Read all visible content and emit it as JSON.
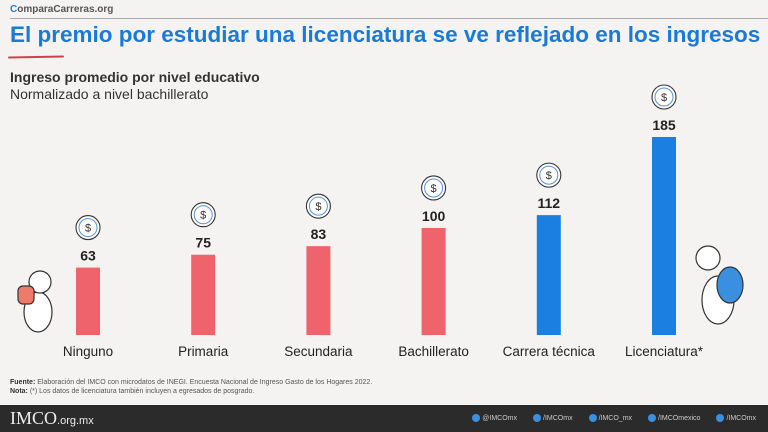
{
  "header": {
    "site_prefix": "C",
    "site_rest": "omparaCarreras.org",
    "title": "El premio por estudiar una licenciatura se ve reflejado en los ingresos"
  },
  "chart_data": {
    "type": "bar",
    "title": "Ingreso promedio por nivel educativo",
    "subtitle": "Normalizado a nivel bachillerato",
    "categories": [
      "Ninguno",
      "Primaria",
      "Secundaria",
      "Bachillerato",
      "Carrera técnica",
      "Licenciatura*"
    ],
    "values": [
      63,
      75,
      83,
      100,
      112,
      185
    ],
    "colors": [
      "#ef636c",
      "#ef636c",
      "#ef636c",
      "#ef636c",
      "#1a7fe0",
      "#1a7fe0"
    ],
    "ylim": [
      0,
      185
    ],
    "grid": false,
    "icon": "money-coin-icon"
  },
  "notes": {
    "source_label": "Fuente:",
    "source": " Elaboración del IMCO con microdatos de INEGI. Encuesta Nacional de Ingreso Gasto de los Hogares 2022.",
    "note_label": "Nota:",
    "note": " (*) Los datos de licenciatura también incluyen a egresados de posgrado."
  },
  "footer": {
    "logo": "IMCO",
    "domain": ".org.mx",
    "social": [
      "@IMCOmx",
      "/IMCOmx",
      "/IMCO_mx",
      "/IMCOmexico",
      "/IMCOmx"
    ]
  }
}
